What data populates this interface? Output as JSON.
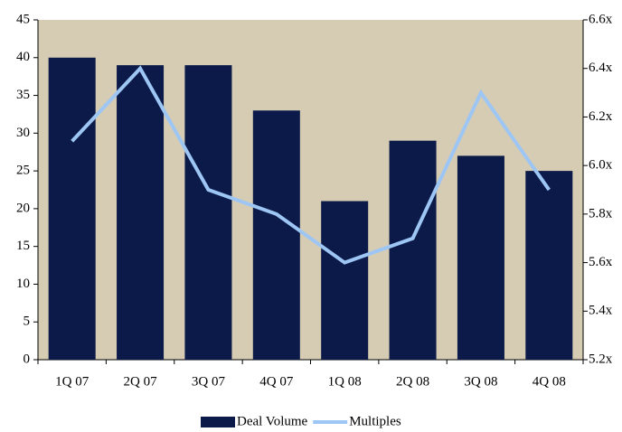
{
  "chart_data": {
    "type": "bar",
    "categories": [
      "1Q 07",
      "2Q 07",
      "3Q 07",
      "4Q 07",
      "1Q 08",
      "2Q 08",
      "3Q 08",
      "4Q 08"
    ],
    "series": [
      {
        "name": "Deal Volume",
        "type": "bar",
        "color": "#0b1a48",
        "values": [
          40,
          39,
          39,
          33,
          21,
          29,
          27,
          25
        ]
      },
      {
        "name": "Multiples",
        "type": "line",
        "axis": "y2",
        "color": "#9dc6f5",
        "values": [
          6.1,
          6.4,
          5.9,
          5.8,
          5.6,
          5.7,
          6.3,
          5.9
        ]
      }
    ],
    "ylim": [
      0,
      45
    ],
    "yticks": [
      0,
      5,
      10,
      15,
      20,
      25,
      30,
      35,
      40,
      45
    ],
    "y2lim": [
      5.2,
      6.6
    ],
    "y2ticks": [
      {
        "value": 5.2,
        "label": "5.2x"
      },
      {
        "value": 5.4,
        "label": "5.4x"
      },
      {
        "value": 5.6,
        "label": "5.6x"
      },
      {
        "value": 5.8,
        "label": "5.8x"
      },
      {
        "value": 6.0,
        "label": "6.0x"
      },
      {
        "value": 6.2,
        "label": "6.2x"
      },
      {
        "value": 6.4,
        "label": "6.4x"
      },
      {
        "value": 6.6,
        "label": "6.6x"
      }
    ],
    "plot_background": "#d5ccb3",
    "legend": "bottom"
  }
}
